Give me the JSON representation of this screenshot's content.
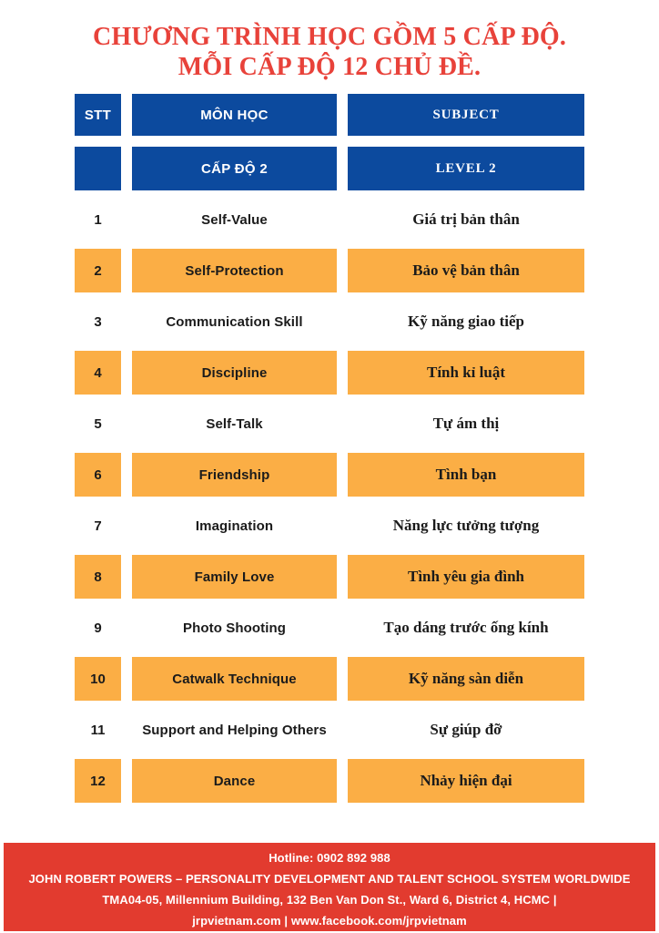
{
  "title": {
    "line1": "CHƯƠNG TRÌNH HỌC GỒM 5 CẤP ĐỘ.",
    "line2": "MỖI CẤP ĐỘ 12 CHỦ ĐỀ."
  },
  "table": {
    "header": {
      "stt": "STT",
      "mon_hoc": "MÔN HỌC",
      "subject": "SUBJECT"
    },
    "level_header": {
      "mon_hoc": "CẤP ĐỘ 2",
      "subject": "LEVEL 2"
    },
    "rows": [
      {
        "stt": "1",
        "subject_en": "Self-Value",
        "subject_vi": "Giá trị bản thân",
        "highlighted": false
      },
      {
        "stt": "2",
        "subject_en": "Self-Protection",
        "subject_vi": "Bảo vệ bản thân",
        "highlighted": true
      },
      {
        "stt": "3",
        "subject_en": "Communication Skill",
        "subject_vi": "Kỹ năng giao tiếp",
        "highlighted": false
      },
      {
        "stt": "4",
        "subject_en": "Discipline",
        "subject_vi": "Tính kỉ luật",
        "highlighted": true
      },
      {
        "stt": "5",
        "subject_en": "Self-Talk",
        "subject_vi": "Tự ám thị",
        "highlighted": false
      },
      {
        "stt": "6",
        "subject_en": "Friendship",
        "subject_vi": "Tình bạn",
        "highlighted": true
      },
      {
        "stt": "7",
        "subject_en": "Imagination",
        "subject_vi": "Năng lực tưởng tượng",
        "highlighted": false
      },
      {
        "stt": "8",
        "subject_en": "Family Love",
        "subject_vi": "Tình yêu gia đình",
        "highlighted": true
      },
      {
        "stt": "9",
        "subject_en": "Photo Shooting",
        "subject_vi": "Tạo dáng trước ống kính",
        "highlighted": false
      },
      {
        "stt": "10",
        "subject_en": "Catwalk Technique",
        "subject_vi": "Kỹ năng sàn diễn",
        "highlighted": true
      },
      {
        "stt": "11",
        "subject_en": "Support and Helping Others",
        "subject_vi": "Sự giúp đỡ",
        "highlighted": false
      },
      {
        "stt": "12",
        "subject_en": "Dance",
        "subject_vi": "Nhảy hiện đại",
        "highlighted": true
      }
    ]
  },
  "footer": {
    "hotline": "Hotline: 0902 892 988",
    "company": "JOHN ROBERT POWERS – PERSONALITY DEVELOPMENT AND TALENT SCHOOL SYSTEM WORLDWIDE",
    "address": "TMA04-05, Millennium Building, 132 Ben Van Don St., Ward 6, District 4, HCMC |",
    "links": "jrpvietnam.com | www.facebook.com/jrpvietnam"
  },
  "colors": {
    "header_blue": "#0C4A9E",
    "row_orange": "#FBAE45",
    "title_red": "#E8423A",
    "footer_red": "#E23B2F",
    "text_black": "#1b1b1b",
    "text_white": "#ffffff"
  }
}
